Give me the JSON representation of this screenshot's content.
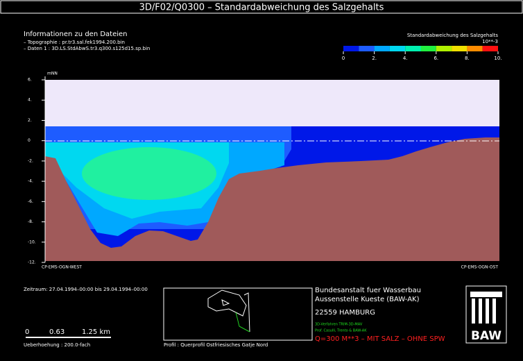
{
  "chart_data": {
    "type": "section",
    "title": "3D/F02/Q0300 – Standardabweichung des Salzgehalts",
    "info": {
      "heading": "Informationen zu den Dateien",
      "lines": [
        "– Topographie : pr.tr3.sal.fek1994.200.bin",
        "– Daten 1 : 3D.LS.StdAbwS.tr3.q300.s125d15.sp.bin"
      ]
    },
    "colorbar": {
      "title": "Standardabweichung des Salzgehalts",
      "unit": "10**-3",
      "lim": [
        0,
        10
      ],
      "colors": [
        "#0018e8",
        "#1e5cff",
        "#00a8ff",
        "#00d8f0",
        "#00f0b0",
        "#20f040",
        "#b0f000",
        "#f0e000",
        "#ff8c00",
        "#ff1010"
      ],
      "ticks": [
        0,
        {
          "value": 2,
          "label": "2."
        },
        {
          "value": 4,
          "label": "4."
        },
        {
          "value": 6,
          "label": "6."
        },
        {
          "value": 8,
          "label": "8."
        },
        {
          "value": 10,
          "label": "10."
        }
      ]
    },
    "y_label": "mNN",
    "ylim": [
      -12,
      6
    ],
    "yticks": [
      {
        "value": -12,
        "label": "-12."
      },
      {
        "value": -10,
        "label": "-10."
      },
      {
        "value": -8,
        "label": "-8."
      },
      {
        "value": -6,
        "label": "-6."
      },
      {
        "value": -4,
        "label": "-4."
      },
      {
        "value": -2,
        "label": "-2."
      },
      0,
      {
        "value": 2,
        "label": "2."
      },
      {
        "value": 4,
        "label": "4."
      },
      {
        "value": 6,
        "label": "6."
      }
    ],
    "left_end": "CP-EMS-OGN-WEST",
    "right_end": "CP-EMS-OGN-OST",
    "period": "Zeitraum: 27.04.1994–00:00 bis 29.04.1994–00:00",
    "scale_labels": [
      "0",
      "0.63",
      "1.25 km"
    ],
    "exaggeration": "Ueberhoehung :   200.0-fach",
    "profile": "Profil : Querprofil Ostfriesisches Gatje Nord",
    "institute": [
      "Bundesanstalt fuer Wasserbau",
      "Aussenstelle Kueste (BAW-AK)",
      "22559 HAMBURG"
    ],
    "model": [
      "3D-Verfahren TRIM-3D-MAV",
      "Prof. Casulli, Trento & BAW-AK"
    ],
    "scenario": "Q=300 M**3 – MIT SALZ – OHNE SPW",
    "logo": "BAW"
  }
}
